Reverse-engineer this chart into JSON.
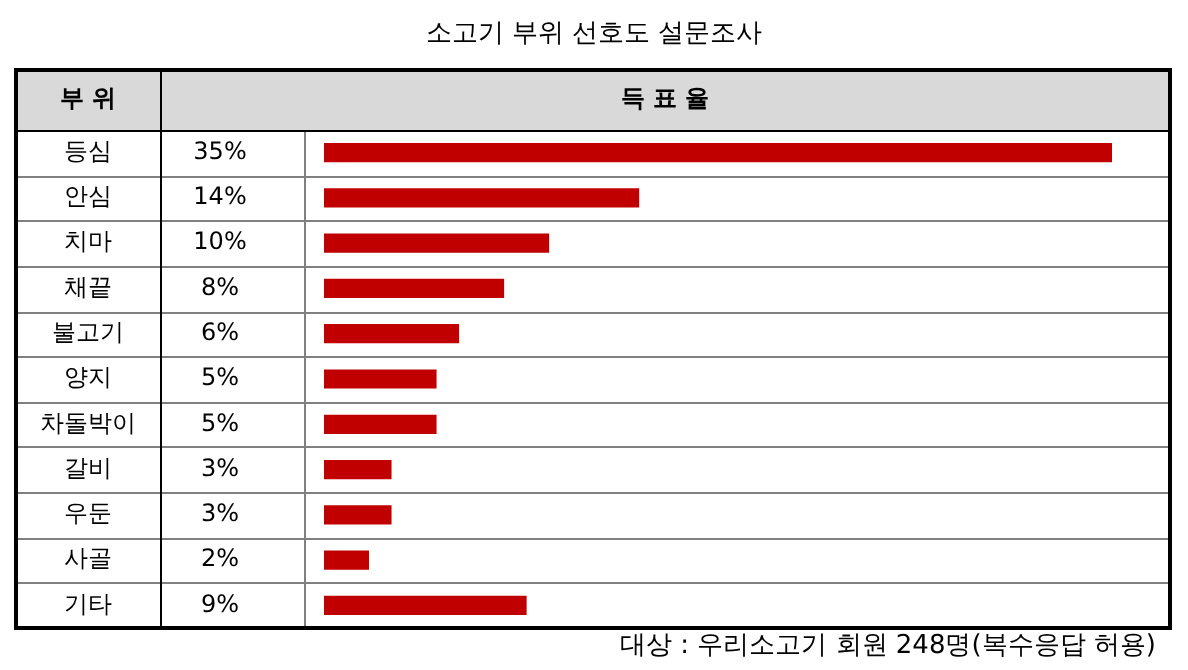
{
  "chart_data": {
    "type": "bar",
    "orientation": "horizontal",
    "title": "소고기 부위 선호도 설문조사",
    "ylabel": "부 위",
    "xlabel": "득 표 율",
    "categories": [
      "등심",
      "안심",
      "치마",
      "채끝",
      "불고기",
      "양지",
      "차돌박이",
      "갈비",
      "우둔",
      "사골",
      "기타"
    ],
    "values": [
      35,
      14,
      10,
      8,
      6,
      5,
      5,
      3,
      3,
      2,
      9
    ],
    "value_labels": [
      "35%",
      "14%",
      "10%",
      "8%",
      "6%",
      "5%",
      "5%",
      "3%",
      "3%",
      "2%",
      "9%"
    ],
    "color": "#c00000",
    "tick_labels": false,
    "legend": false,
    "annotations": [
      "대상 : 우리소고기 회원 248명(복수응답 허용)"
    ]
  }
}
